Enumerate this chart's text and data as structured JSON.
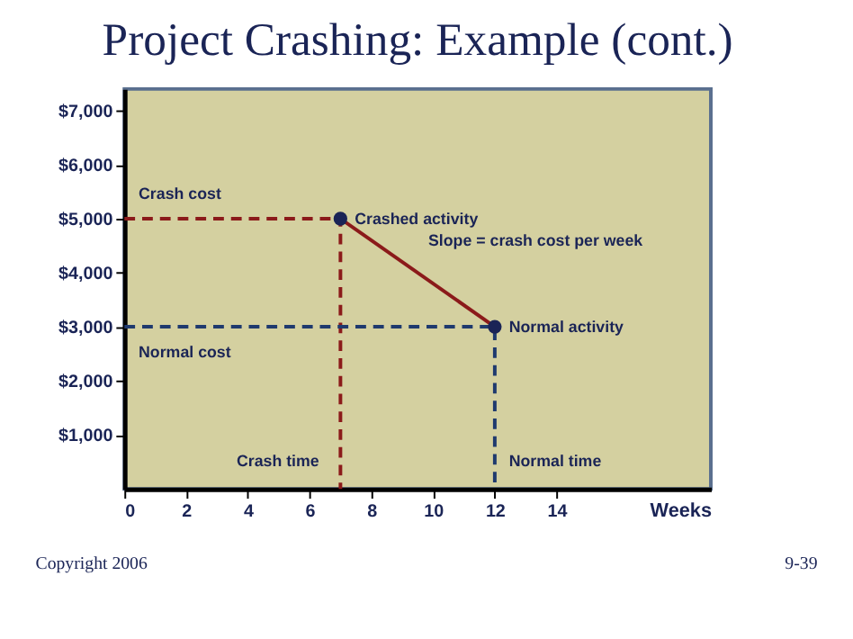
{
  "chart_data": {
    "type": "line",
    "title": "Project Crashing: Example (cont.)",
    "xlabel": "Weeks",
    "xlim": [
      0,
      19
    ],
    "xticks": [
      0,
      2,
      4,
      6,
      8,
      10,
      12,
      14
    ],
    "ylim": [
      0,
      7400
    ],
    "yticks": [
      {
        "value": 1000,
        "label": "$1,000"
      },
      {
        "value": 2000,
        "label": "$2,000"
      },
      {
        "value": 3000,
        "label": "$3,000"
      },
      {
        "value": 4000,
        "label": "$4,000"
      },
      {
        "value": 5000,
        "label": "$5,000"
      },
      {
        "value": 6000,
        "label": "$6,000"
      },
      {
        "value": 7000,
        "label": "$7,000"
      }
    ],
    "grid": false,
    "series": [
      {
        "color": "#8b1a1a",
        "x": [
          7,
          12
        ],
        "values": [
          5000,
          3000
        ],
        "line_style": "solid"
      },
      {
        "color": "#8b1a1a",
        "x": [
          0,
          7,
          7
        ],
        "values": [
          5000,
          5000,
          0
        ],
        "line_style": "dashed"
      },
      {
        "color": "#1f3a6e",
        "x": [
          0,
          12,
          12
        ],
        "values": [
          3000,
          3000,
          0
        ],
        "line_style": "dashed"
      },
      {
        "type": "scatter",
        "color": "#1a2456",
        "x": [
          7,
          12
        ],
        "values": [
          5000,
          3000
        ],
        "marker": "circle"
      }
    ],
    "annotations": [
      {
        "text": "Crash cost",
        "x": 0,
        "y": 5000
      },
      {
        "text": "Crashed activity",
        "x": 7,
        "y": 5000
      },
      {
        "text": "Slope = crash cost per week",
        "x": 9.5,
        "y": 4000
      },
      {
        "text": "Normal activity",
        "x": 12,
        "y": 3000
      },
      {
        "text": "Normal cost",
        "x": 0,
        "y": 3000
      },
      {
        "text": "Crash time",
        "x": 7,
        "y": 0
      },
      {
        "text": "Normal time",
        "x": 12,
        "y": 0
      },
      "Copyright 2006",
      "9-39"
    ]
  }
}
